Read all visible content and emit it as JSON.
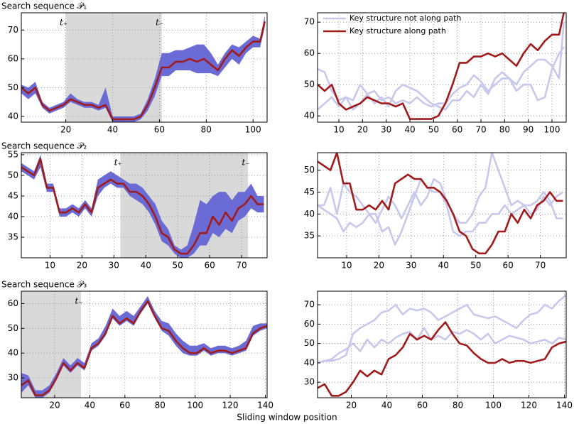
{
  "figure_xlabel": "Sliding window position",
  "chart_data": [
    {
      "type": "line",
      "title": "Search sequence 𝒫₁",
      "x": [
        1,
        4,
        7,
        10,
        13,
        16,
        19,
        22,
        25,
        28,
        31,
        34,
        37,
        40,
        43,
        46,
        49,
        52,
        55,
        58,
        61,
        64,
        67,
        70,
        73,
        76,
        79,
        82,
        85,
        88,
        91,
        94,
        97,
        100,
        103,
        105
      ],
      "xlim": [
        1,
        106
      ],
      "ylim": [
        38,
        76
      ],
      "xticks": [
        20,
        40,
        60,
        80,
        100
      ],
      "yticks": [
        40,
        50,
        60,
        70
      ],
      "grid": true,
      "span": [
        20,
        61
      ],
      "annotations": [
        {
          "text": "t₊",
          "x": 20
        },
        {
          "text": "t₋",
          "x": 61
        }
      ],
      "band": {
        "color": "#6b6bd6",
        "low": [
          48,
          46,
          48,
          43,
          41,
          42,
          43,
          45,
          44,
          43,
          43,
          42,
          43,
          38,
          38,
          38,
          38,
          39,
          42,
          47,
          54,
          54,
          56,
          56,
          56,
          55,
          55,
          55,
          54,
          57,
          60,
          58,
          62,
          64,
          64,
          71
        ],
        "high": [
          51,
          50,
          52,
          45,
          43,
          44,
          45,
          48,
          46,
          45,
          45,
          44,
          50,
          40,
          40,
          40,
          40,
          41,
          46,
          53,
          62,
          62,
          63,
          63,
          64,
          65,
          65,
          62,
          58,
          62,
          65,
          64,
          66,
          68,
          67,
          75
        ]
      },
      "series": [
        {
          "color": "#a01c1c",
          "values": [
            50,
            48,
            50,
            44,
            42,
            43,
            44,
            46,
            45,
            44,
            44,
            43,
            44,
            39,
            39,
            39,
            39,
            40,
            44,
            50,
            57,
            57,
            59,
            59,
            60,
            59,
            60,
            58,
            56,
            60,
            63,
            61,
            64,
            66,
            66,
            73
          ]
        }
      ]
    },
    {
      "type": "line",
      "x": [
        1,
        4,
        7,
        10,
        13,
        16,
        19,
        22,
        25,
        28,
        31,
        34,
        37,
        40,
        43,
        46,
        49,
        52,
        55,
        58,
        61,
        64,
        67,
        70,
        73,
        76,
        79,
        82,
        85,
        88,
        91,
        94,
        97,
        100,
        103,
        105
      ],
      "xlim": [
        1,
        106
      ],
      "ylim": [
        38,
        73
      ],
      "xticks": [
        10,
        20,
        30,
        40,
        50,
        60,
        70,
        80,
        90,
        100
      ],
      "yticks": [
        40,
        50,
        60,
        70
      ],
      "grid": true,
      "legend": "upper left",
      "series": [
        {
          "name": "Key structure not along path",
          "color": "#c8c8ec",
          "values": [
            55,
            54,
            48,
            45,
            46,
            42,
            44,
            47,
            48,
            45,
            46,
            44,
            45,
            44,
            46,
            44,
            43,
            44,
            44,
            47,
            49,
            50,
            53,
            51,
            48,
            50,
            52,
            52,
            48,
            50,
            50,
            45,
            46,
            55,
            60,
            62
          ]
        },
        {
          "color": "#c8c8ec",
          "values": [
            42,
            44,
            46,
            43,
            46,
            45,
            50,
            47,
            44,
            46,
            43,
            48,
            50,
            49,
            48,
            46,
            44,
            43,
            42,
            45,
            45,
            48,
            46,
            50,
            47,
            52,
            54,
            52,
            50,
            54,
            56,
            58,
            58,
            56,
            52,
            70
          ]
        },
        {
          "name": "Key structure along path",
          "color": "#a01c1c",
          "values": [
            50,
            48,
            50,
            44,
            42,
            43,
            44,
            46,
            45,
            44,
            44,
            43,
            44,
            39,
            39,
            39,
            39,
            40,
            44,
            50,
            57,
            57,
            59,
            59,
            60,
            59,
            60,
            58,
            56,
            60,
            63,
            61,
            64,
            66,
            66,
            73
          ]
        }
      ]
    },
    {
      "type": "line",
      "title": "Search sequence 𝒫₂",
      "x": [
        1,
        3,
        5,
        7,
        9,
        11,
        13,
        15,
        17,
        19,
        21,
        23,
        25,
        27,
        29,
        31,
        33,
        35,
        37,
        39,
        41,
        43,
        45,
        47,
        49,
        51,
        53,
        55,
        57,
        59,
        61,
        63,
        65,
        67,
        69,
        71,
        73,
        75,
        77
      ],
      "xlim": [
        1,
        78
      ],
      "ylim": [
        30,
        55.5
      ],
      "xticks": [
        10,
        20,
        30,
        40,
        50,
        60,
        70
      ],
      "yticks": [
        35,
        40,
        45,
        50,
        55
      ],
      "grid": true,
      "span": [
        32,
        72
      ],
      "annotations": [
        {
          "text": "t₊",
          "x": 32
        },
        {
          "text": "t₋",
          "x": 72
        }
      ],
      "band": {
        "color": "#6b6bd6",
        "low": [
          51,
          50,
          49,
          52,
          46,
          46,
          40,
          40,
          41,
          40,
          42,
          40,
          45,
          47,
          48,
          47,
          47,
          45,
          44,
          43,
          41,
          38,
          34,
          33,
          31,
          30,
          30,
          31,
          33,
          33,
          36,
          35,
          37,
          36,
          39,
          40,
          42,
          41,
          41
        ],
        "high": [
          53,
          52,
          51,
          55,
          48,
          48,
          42,
          42,
          43,
          42,
          44,
          42,
          49,
          50,
          51,
          50,
          49,
          48,
          48,
          47,
          45,
          43,
          39,
          37,
          33,
          32,
          33,
          38,
          44,
          43,
          45,
          46,
          46,
          44,
          46,
          46,
          48,
          45,
          45
        ]
      },
      "series": [
        {
          "color": "#a01c1c",
          "values": [
            52,
            51,
            50,
            54,
            47,
            47,
            41,
            41,
            42,
            41,
            43,
            41,
            47,
            48,
            49,
            48,
            48,
            46,
            46,
            45,
            43,
            40,
            36,
            35,
            32,
            31,
            31,
            33,
            36,
            36,
            40,
            38,
            41,
            39,
            42,
            43,
            45,
            43,
            43
          ]
        }
      ]
    },
    {
      "type": "line",
      "x": [
        1,
        3,
        5,
        7,
        9,
        11,
        13,
        15,
        17,
        19,
        21,
        23,
        25,
        27,
        29,
        31,
        33,
        35,
        37,
        39,
        41,
        43,
        45,
        47,
        49,
        51,
        53,
        55,
        57,
        59,
        61,
        63,
        65,
        67,
        69,
        71,
        73,
        75,
        77
      ],
      "xlim": [
        1,
        78
      ],
      "ylim": [
        30,
        54
      ],
      "xticks": [
        10,
        20,
        30,
        40,
        50,
        60,
        70
      ],
      "yticks": [
        35,
        40,
        45,
        50
      ],
      "grid": true,
      "series": [
        {
          "color": "#c8c8ec",
          "values": [
            42,
            42,
            46,
            40,
            47,
            45,
            44,
            42,
            40,
            38,
            41,
            44,
            42,
            39,
            42,
            45,
            42,
            44,
            48,
            47,
            43,
            40,
            38,
            38,
            40,
            44,
            46,
            54,
            50,
            46,
            42,
            43,
            42,
            40,
            41,
            44,
            42,
            44,
            45
          ]
        },
        {
          "color": "#c8c8ec",
          "values": [
            42,
            41,
            40,
            39,
            36,
            38,
            37,
            38,
            40,
            40,
            36,
            37,
            33,
            36,
            40,
            44,
            48,
            46,
            45,
            45,
            42,
            36,
            35,
            36,
            36,
            38,
            38,
            40,
            40,
            42,
            40,
            41,
            42,
            42,
            43,
            45,
            43,
            39,
            39
          ]
        },
        {
          "color": "#a01c1c",
          "values": [
            52,
            51,
            50,
            54,
            47,
            47,
            41,
            41,
            42,
            41,
            43,
            41,
            47,
            48,
            49,
            48,
            48,
            46,
            46,
            45,
            43,
            40,
            36,
            35,
            32,
            31,
            31,
            33,
            36,
            36,
            40,
            38,
            41,
            39,
            42,
            43,
            45,
            43,
            43
          ]
        }
      ]
    },
    {
      "type": "line",
      "title": "Search sequence 𝒫₃",
      "x": [
        1,
        5,
        9,
        13,
        17,
        21,
        25,
        29,
        33,
        37,
        41,
        45,
        49,
        53,
        57,
        61,
        65,
        69,
        73,
        77,
        81,
        85,
        89,
        93,
        97,
        101,
        105,
        109,
        113,
        117,
        121,
        125,
        129,
        133,
        137,
        141
      ],
      "xlim": [
        1,
        141
      ],
      "ylim": [
        22,
        65
      ],
      "xticks": [
        20,
        40,
        60,
        80,
        100,
        120,
        140
      ],
      "yticks": [
        30,
        40,
        50,
        60
      ],
      "grid": true,
      "span": [
        1,
        35
      ],
      "annotations": [
        {
          "text": "t₋",
          "x": 35
        }
      ],
      "band": {
        "color": "#6b6bd6",
        "low": [
          24,
          27,
          22,
          22,
          24,
          29,
          35,
          32,
          35,
          33,
          41,
          43,
          47,
          54,
          51,
          53,
          51,
          56,
          60,
          54,
          49,
          47,
          43,
          40,
          39,
          39,
          41,
          39,
          40,
          40,
          39,
          40,
          41,
          47,
          49,
          50
        ],
        "high": [
          32,
          31,
          25,
          25,
          27,
          32,
          38,
          35,
          38,
          36,
          44,
          46,
          51,
          58,
          55,
          57,
          55,
          59,
          63,
          57,
          53,
          52,
          48,
          45,
          43,
          43,
          44,
          42,
          43,
          43,
          42,
          43,
          45,
          51,
          52,
          52
        ]
      },
      "series": [
        {
          "color": "#a01c1c",
          "values": [
            27,
            29,
            23,
            23,
            25,
            30,
            36,
            33,
            36,
            34,
            42,
            44,
            48,
            55,
            52,
            54,
            52,
            57,
            61,
            55,
            50,
            49,
            45,
            42,
            40,
            40,
            42,
            40,
            41,
            41,
            40,
            41,
            42,
            48,
            50,
            51
          ]
        }
      ]
    },
    {
      "type": "line",
      "x": [
        1,
        5,
        9,
        13,
        17,
        21,
        25,
        29,
        33,
        37,
        41,
        45,
        49,
        53,
        57,
        61,
        65,
        69,
        73,
        77,
        81,
        85,
        89,
        93,
        97,
        101,
        105,
        109,
        113,
        117,
        121,
        125,
        129,
        133,
        137,
        141
      ],
      "xlim": [
        1,
        141
      ],
      "ylim": [
        22,
        77
      ],
      "xticks": [
        20,
        40,
        60,
        80,
        100,
        120,
        140
      ],
      "yticks": [
        30,
        40,
        50,
        60,
        70
      ],
      "grid": true,
      "series": [
        {
          "color": "#c8c8ec",
          "values": [
            40,
            41,
            41,
            42,
            44,
            55,
            58,
            60,
            62,
            66,
            67,
            70,
            65,
            68,
            67,
            68,
            66,
            62,
            64,
            66,
            68,
            70,
            65,
            64,
            63,
            64,
            62,
            60,
            58,
            62,
            65,
            66,
            70,
            68,
            72,
            75
          ]
        },
        {
          "color": "#c8c8ec",
          "values": [
            40,
            41,
            42,
            45,
            47,
            50,
            46,
            52,
            48,
            52,
            50,
            53,
            55,
            56,
            52,
            58,
            52,
            54,
            52,
            56,
            55,
            57,
            55,
            52,
            55,
            50,
            52,
            54,
            53,
            52,
            50,
            51,
            52,
            50,
            53,
            52
          ]
        },
        {
          "color": "#a01c1c",
          "values": [
            27,
            29,
            23,
            23,
            25,
            30,
            36,
            33,
            36,
            34,
            42,
            44,
            48,
            55,
            52,
            54,
            52,
            57,
            61,
            55,
            50,
            49,
            45,
            42,
            40,
            40,
            42,
            40,
            41,
            41,
            40,
            41,
            42,
            48,
            50,
            51
          ]
        }
      ]
    }
  ]
}
